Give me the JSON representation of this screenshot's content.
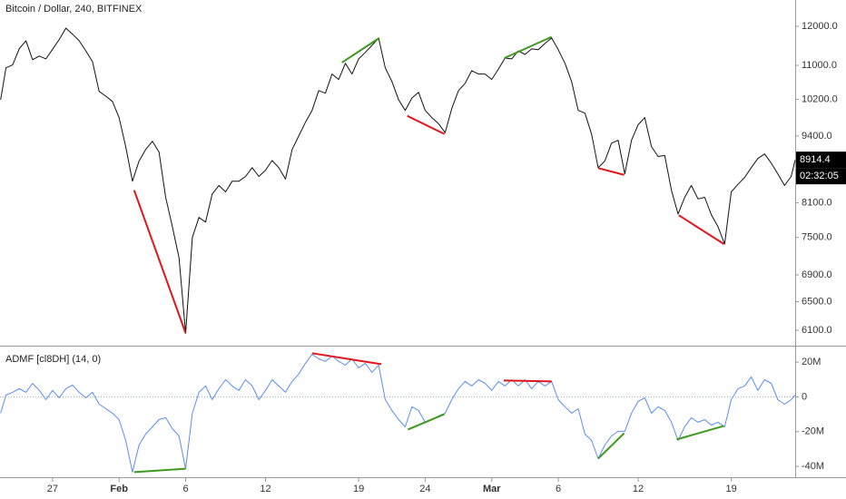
{
  "chart_data": [
    {
      "type": "line",
      "title": "Bitcoin / Dollar, 240, BITFINEX",
      "log": true,
      "xlim": [
        -3.95,
        55.8
      ],
      "ylim": [
        5906,
        12722
      ],
      "yticks": [
        {
          "value": 12000,
          "label": "12000.0"
        },
        {
          "value": 11000,
          "label": "11000.0"
        },
        {
          "value": 10200,
          "label": "10200.0"
        },
        {
          "value": 9400,
          "label": "9400.0"
        },
        {
          "value": 8100,
          "label": "8100.0"
        },
        {
          "value": 7500,
          "label": "7500.0"
        },
        {
          "value": 6900,
          "label": "6900.0"
        },
        {
          "value": 6500,
          "label": "6500.0"
        },
        {
          "value": 6100,
          "label": "6100.0"
        }
      ],
      "x": [
        -3.9,
        -3.5,
        -3,
        -2.5,
        -2,
        -1.5,
        -1,
        -0.5,
        0,
        0.5,
        1,
        1.5,
        2,
        2.5,
        3,
        3.5,
        4,
        4.5,
        5,
        5.5,
        6,
        6.5,
        7,
        7.5,
        8,
        8.5,
        9,
        9.5,
        10,
        10.5,
        11,
        11.5,
        12,
        12.5,
        13,
        13.5,
        14,
        14.5,
        15,
        15.5,
        16,
        16.5,
        17,
        17.5,
        18,
        18.5,
        19,
        19.5,
        20,
        20.5,
        21,
        21.5,
        22,
        22.5,
        23,
        23.5,
        24,
        24.5,
        25,
        25.5,
        26,
        26.5,
        27,
        27.5,
        28,
        28.5,
        29,
        29.5,
        30,
        30.5,
        31,
        31.5,
        32,
        32.5,
        33,
        33.5,
        34,
        34.5,
        35,
        35.5,
        36,
        36.5,
        37,
        37.5,
        38,
        38.5,
        39,
        39.5,
        40,
        40.5,
        41,
        41.5,
        42,
        42.5,
        43,
        43.5,
        44,
        44.5,
        45,
        45.5,
        46,
        46.5,
        47,
        47.5,
        48,
        48.5,
        49,
        49.5,
        50,
        50.5,
        51,
        51.5,
        52,
        52.5,
        53,
        53.5,
        54,
        54.5,
        55,
        55.5,
        55.8
      ],
      "series": [
        {
          "color": "#111111",
          "values": [
            10190,
            10940,
            11010,
            11420,
            11620,
            11140,
            11230,
            11160,
            11400,
            11650,
            11950,
            11790,
            11620,
            11360,
            11090,
            10380,
            10270,
            10150,
            9790,
            9180,
            8500,
            8890,
            9120,
            9290,
            9070,
            8200,
            7680,
            7170,
            6060,
            7500,
            7840,
            7760,
            8260,
            8420,
            8300,
            8500,
            8500,
            8590,
            8760,
            8590,
            8710,
            8900,
            8760,
            8540,
            9120,
            9400,
            9690,
            9950,
            10400,
            10340,
            10790,
            10660,
            11050,
            10790,
            11160,
            11320,
            11500,
            11690,
            10940,
            10610,
            10190,
            9950,
            10230,
            10360,
            9950,
            9790,
            9660,
            9470,
            9990,
            10400,
            10570,
            10870,
            10790,
            10790,
            10660,
            10910,
            11180,
            11160,
            11360,
            11270,
            11410,
            11390,
            11550,
            11690,
            11390,
            11050,
            10610,
            9950,
            9890,
            9440,
            8760,
            8890,
            9250,
            9310,
            8640,
            9310,
            9640,
            9790,
            9180,
            8980,
            9000,
            8330,
            7900,
            8200,
            8420,
            8170,
            8200,
            7890,
            7680,
            7390,
            8300,
            8440,
            8570,
            8760,
            8940,
            9030,
            8850,
            8640,
            8420,
            8590,
            8910
          ]
        }
      ],
      "divergences": [
        {
          "x": [
            6.13,
            10.0
          ],
          "values": [
            8330,
            6060
          ],
          "color": "#e0161c"
        },
        {
          "x": [
            21.75,
            24.55
          ],
          "values": [
            11070,
            11690
          ],
          "color": "#3d9a1e"
        },
        {
          "x": [
            26.65,
            29.45
          ],
          "values": [
            9830,
            9440
          ],
          "color": "#e0161c"
        },
        {
          "x": [
            33.95,
            37.5
          ],
          "values": [
            11180,
            11720
          ],
          "color": "#3d9a1e"
        },
        {
          "x": [
            41.0,
            42.95
          ],
          "values": [
            8750,
            8620
          ],
          "color": "#e0161c"
        },
        {
          "x": [
            47.05,
            50.45
          ],
          "values": [
            7880,
            7390
          ],
          "color": "#e0161c"
        }
      ],
      "last_value": 8914.4,
      "countdown": "02:32:05"
    },
    {
      "type": "line",
      "title": "ADMF [cl8DH] (14, 0)",
      "log": false,
      "zero_line": true,
      "xlim": [
        -3.95,
        55.8
      ],
      "ylim": [
        -45.7,
        28.4
      ],
      "yticks": [
        {
          "value": 20,
          "label": "20M"
        },
        0,
        {
          "value": -20,
          "label": "-20M"
        },
        {
          "value": -40,
          "label": "-40M"
        }
      ],
      "xticks": [
        {
          "value": 0,
          "label": "27"
        },
        {
          "value": 5,
          "label": "Feb"
        },
        {
          "value": 10,
          "label": "6"
        },
        {
          "value": 16,
          "label": "12"
        },
        {
          "value": 23,
          "label": "19"
        },
        {
          "value": 28,
          "label": "24"
        },
        {
          "value": 33,
          "label": "Mar"
        },
        {
          "value": 38,
          "label": "6"
        },
        {
          "value": 44,
          "label": "12"
        },
        {
          "value": 51,
          "label": "19"
        }
      ],
      "x": [
        -3.9,
        -3.5,
        -3,
        -2.5,
        -2,
        -1.5,
        -1,
        -0.5,
        0,
        0.5,
        1,
        1.5,
        2,
        2.5,
        3,
        3.5,
        4,
        4.5,
        5,
        5.5,
        6,
        6.5,
        7,
        7.5,
        8,
        8.5,
        9,
        9.5,
        10,
        10.5,
        11,
        11.5,
        12,
        12.5,
        13,
        13.5,
        14,
        14.5,
        15,
        15.5,
        16,
        16.5,
        17,
        17.5,
        18,
        18.5,
        19,
        19.5,
        20,
        20.5,
        21,
        21.5,
        22,
        22.5,
        23,
        23.5,
        24,
        24.5,
        25,
        25.5,
        26,
        26.5,
        27,
        27.5,
        28,
        28.5,
        29,
        29.5,
        30,
        30.5,
        31,
        31.5,
        32,
        32.5,
        33,
        33.5,
        34,
        34.5,
        35,
        35.5,
        36,
        36.5,
        37,
        37.5,
        38,
        38.5,
        39,
        39.5,
        40,
        40.5,
        41,
        41.5,
        42,
        42.5,
        43,
        43.5,
        44,
        44.5,
        45,
        45.5,
        46,
        46.5,
        47,
        47.5,
        48,
        48.5,
        49,
        49.5,
        50,
        50.5,
        51,
        51.5,
        52,
        52.5,
        53,
        53.5,
        54,
        54.5,
        55,
        55.5,
        55.8
      ],
      "series": [
        {
          "color": "#5b8def",
          "values": [
            -9.4,
            1,
            2.6,
            4.7,
            2.6,
            7.8,
            3.7,
            -1.6,
            3.7,
            -0.5,
            4.7,
            6.8,
            2.6,
            -0.5,
            2.6,
            -4.2,
            -6.8,
            -9.4,
            -13.1,
            -25.1,
            -43.3,
            -27.7,
            -21.4,
            -17.2,
            -13.1,
            -12,
            -18.3,
            -22.5,
            -41.3,
            -9.4,
            2.6,
            6.3,
            -1.6,
            4.7,
            9.9,
            6.3,
            3.7,
            9.9,
            6.3,
            -1.6,
            3.7,
            9.9,
            6.3,
            2.6,
            8.9,
            13.1,
            19.3,
            24.5,
            21.9,
            20.4,
            23.5,
            20.4,
            18.3,
            21.9,
            16.7,
            19.3,
            14.1,
            18.3,
            -1.6,
            -7.8,
            -13.1,
            -17.2,
            -5.7,
            -7.8,
            -14.6,
            -13.1,
            -11,
            -9.4,
            -1.6,
            4.7,
            8.9,
            6.3,
            9.9,
            7.8,
            3.7,
            8.9,
            6.3,
            9.9,
            6.3,
            9.9,
            4.7,
            8.9,
            6.3,
            8.9,
            -1.6,
            -5.7,
            -9.4,
            -6.8,
            -21.4,
            -25.1,
            -35.5,
            -27.7,
            -22.5,
            -19.8,
            -19.8,
            -9.4,
            -2.6,
            -0.5,
            -9.4,
            -5.7,
            -7.8,
            -14.6,
            -25.1,
            -17.2,
            -12,
            -14.6,
            -13.1,
            -16.2,
            -14.6,
            -17.2,
            -1.6,
            4.7,
            6.3,
            11.5,
            3.7,
            9.9,
            7.8,
            -1.6,
            -4.2,
            -1.6,
            1
          ]
        }
      ],
      "divergences": [
        {
          "x": [
            6.13,
            10.0
          ],
          "values": [
            -43.3,
            -41.3
          ],
          "color": "#3d9a1e"
        },
        {
          "x": [
            19.5,
            24.7
          ],
          "values": [
            25.1,
            18.8
          ],
          "color": "#e0161c"
        },
        {
          "x": [
            26.7,
            29.45
          ],
          "values": [
            -18.8,
            -9.9
          ],
          "color": "#3d9a1e"
        },
        {
          "x": [
            33.9,
            37.5
          ],
          "values": [
            9.4,
            8.9
          ],
          "color": "#e0161c"
        },
        {
          "x": [
            41.0,
            42.95
          ],
          "values": [
            -35.5,
            -20.9
          ],
          "color": "#3d9a1e"
        },
        {
          "x": [
            46.9,
            50.45
          ],
          "values": [
            -24.5,
            -16.7
          ],
          "color": "#3d9a1e"
        }
      ]
    }
  ]
}
